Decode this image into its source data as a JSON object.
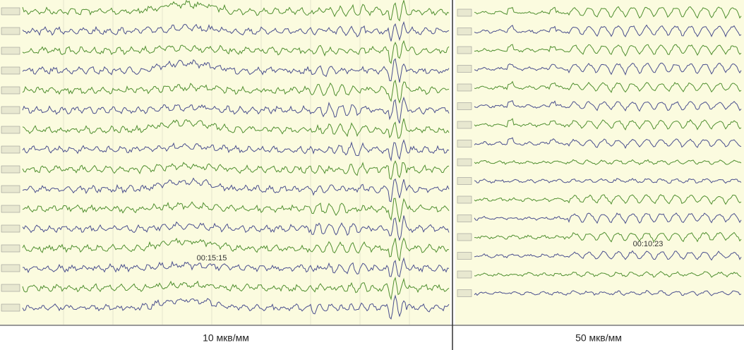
{
  "panels": [
    {
      "timestamp": "00:15:15",
      "scale": "10 мкв/мм"
    },
    {
      "timestamp": "00:10:23",
      "scale": "50 мкв/мм"
    }
  ]
}
